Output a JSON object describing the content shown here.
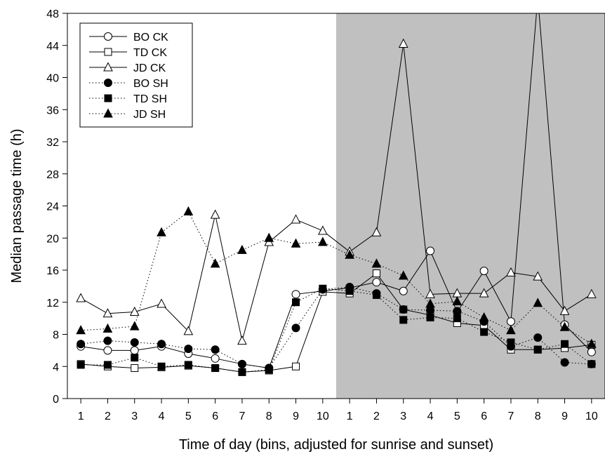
{
  "chart_data": {
    "type": "line",
    "title": "",
    "xlabel": "Time of day (bins, adjusted for sunrise and sunset)",
    "ylabel": "Median passage time (h)",
    "ylim": [
      0,
      48
    ],
    "yticks": [
      0,
      4,
      8,
      12,
      16,
      20,
      24,
      28,
      32,
      36,
      40,
      44,
      48
    ],
    "categories": [
      "1",
      "2",
      "3",
      "4",
      "5",
      "6",
      "7",
      "8",
      "9",
      "10",
      "1",
      "2",
      "3",
      "4",
      "5",
      "6",
      "7",
      "8",
      "9",
      "10"
    ],
    "shaded_region": {
      "from_category_index": 10,
      "to_category_index": 19,
      "color": "#c0c0c0"
    },
    "legend_position": "top-left",
    "grid": false,
    "series": [
      {
        "name": "BO CK",
        "marker": "circle",
        "filled": false,
        "line": "solid",
        "values": [
          6.5,
          6.0,
          6.0,
          6.5,
          5.6,
          5.0,
          4.3,
          3.8,
          13.0,
          13.4,
          13.8,
          14.5,
          13.4,
          18.4,
          10.8,
          15.9,
          9.6,
          50.0,
          9.2,
          5.8
        ]
      },
      {
        "name": "TD CK",
        "marker": "square",
        "filled": false,
        "line": "solid",
        "values": [
          4.3,
          4.0,
          3.8,
          3.9,
          4.1,
          3.8,
          3.3,
          3.5,
          4.0,
          13.3,
          13.1,
          15.6,
          11.1,
          10.4,
          9.4,
          9.1,
          6.1,
          6.1,
          6.3,
          6.7
        ]
      },
      {
        "name": "JD CK",
        "marker": "triangle",
        "filled": false,
        "line": "solid",
        "values": [
          12.5,
          10.6,
          10.8,
          11.8,
          8.4,
          22.9,
          7.2,
          19.5,
          22.3,
          20.9,
          18.3,
          20.7,
          44.2,
          13.0,
          13.1,
          13.1,
          15.7,
          15.2,
          10.9,
          13.0
        ]
      },
      {
        "name": "BO SH",
        "marker": "circle",
        "filled": true,
        "line": "dotted",
        "values": [
          6.8,
          7.2,
          7.0,
          6.8,
          6.2,
          6.1,
          4.3,
          3.8,
          8.8,
          13.6,
          13.9,
          13.1,
          11.1,
          11.0,
          10.9,
          9.6,
          6.5,
          7.6,
          4.5,
          4.3
        ]
      },
      {
        "name": "TD SH",
        "marker": "square",
        "filled": true,
        "line": "dotted",
        "values": [
          4.2,
          4.2,
          5.1,
          4.0,
          4.2,
          3.8,
          3.3,
          3.6,
          12.0,
          13.7,
          13.4,
          12.9,
          9.8,
          10.1,
          10.0,
          8.3,
          7.0,
          6.1,
          6.8,
          4.3
        ]
      },
      {
        "name": "JD SH",
        "marker": "triangle",
        "filled": true,
        "line": "dotted",
        "values": [
          8.5,
          8.7,
          9.0,
          20.7,
          23.3,
          16.8,
          18.5,
          20.0,
          19.3,
          19.5,
          17.9,
          16.8,
          15.3,
          11.8,
          12.1,
          10.1,
          8.5,
          11.9,
          8.9,
          6.8
        ]
      }
    ]
  }
}
